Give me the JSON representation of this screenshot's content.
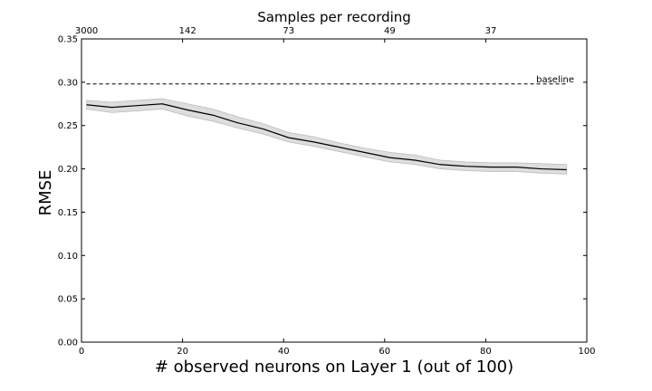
{
  "chart_data": {
    "type": "line",
    "xlabel": "# observed neurons on Layer 1 (out of 100)",
    "ylabel": "RMSE",
    "top_axis_title": "Samples per recording",
    "xlim": [
      0,
      100
    ],
    "ylim": [
      0,
      0.35
    ],
    "x_ticks": [
      0,
      20,
      40,
      60,
      80,
      100
    ],
    "y_ticks": [
      "0.00",
      "0.05",
      "0.10",
      "0.15",
      "0.20",
      "0.25",
      "0.30",
      "0.35"
    ],
    "top_ticks": [
      {
        "label": "3000",
        "x": 1
      },
      {
        "label": "142",
        "x": 21
      },
      {
        "label": "73",
        "x": 41
      },
      {
        "label": "49",
        "x": 61
      },
      {
        "label": "37",
        "x": 81
      }
    ],
    "grid": false,
    "series": [
      {
        "x": [
          1,
          6,
          11,
          16,
          21,
          26,
          31,
          36,
          41,
          46,
          51,
          56,
          61,
          66,
          71,
          76,
          81,
          86,
          91,
          96
        ],
        "values": [
          0.274,
          0.271,
          0.273,
          0.275,
          0.268,
          0.262,
          0.253,
          0.246,
          0.236,
          0.231,
          0.225,
          0.219,
          0.213,
          0.21,
          0.205,
          0.203,
          0.202,
          0.202,
          0.2,
          0.199
        ],
        "lower": [
          0.269,
          0.265,
          0.267,
          0.269,
          0.261,
          0.255,
          0.247,
          0.24,
          0.231,
          0.226,
          0.22,
          0.214,
          0.208,
          0.205,
          0.2,
          0.198,
          0.197,
          0.197,
          0.195,
          0.194
        ],
        "upper": [
          0.279,
          0.277,
          0.279,
          0.281,
          0.275,
          0.269,
          0.26,
          0.252,
          0.242,
          0.237,
          0.23,
          0.224,
          0.219,
          0.216,
          0.21,
          0.208,
          0.207,
          0.207,
          0.206,
          0.205
        ],
        "color": "#000000",
        "band_color": "#d9d9d9"
      }
    ],
    "baseline": {
      "label": "baseline",
      "value": 0.298,
      "x_start": 1,
      "x_end": 96
    }
  }
}
